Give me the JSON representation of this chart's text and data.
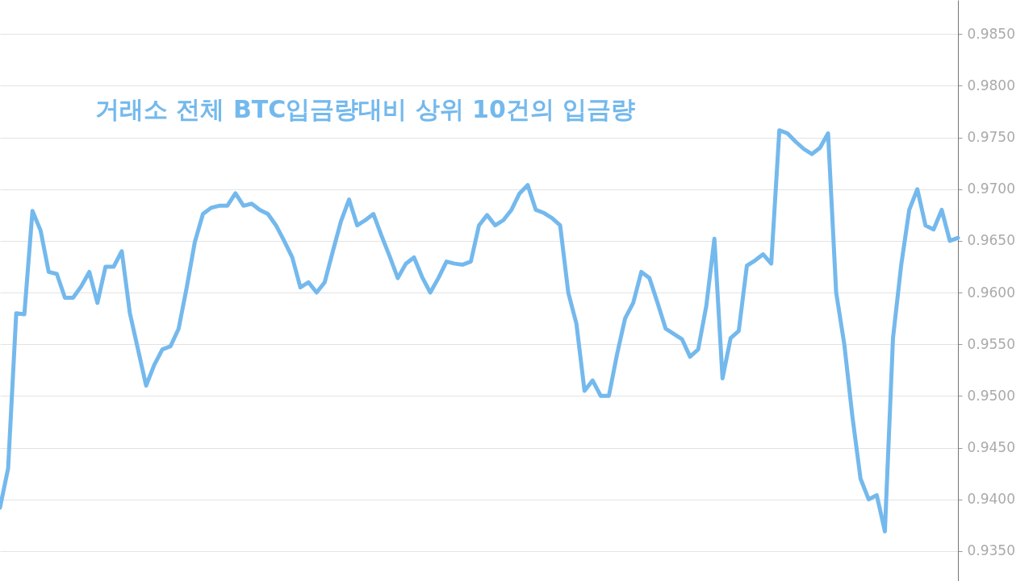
{
  "chart_data": {
    "type": "line",
    "title": "거래소 전체 BTC입금량대비 상위 10건의 입금량",
    "categories": [
      null,
      null,
      null,
      null,
      null,
      null,
      null,
      null,
      null,
      null,
      null,
      null,
      null,
      null,
      null,
      null,
      null,
      null,
      null,
      null,
      null,
      null,
      null,
      null,
      null,
      null,
      null,
      null,
      null,
      null,
      null,
      null,
      null,
      null,
      null,
      null,
      null,
      null,
      null,
      null,
      null,
      null,
      null,
      null,
      null,
      null,
      null,
      null,
      null,
      null,
      null,
      null,
      null,
      null,
      null,
      null,
      null,
      null,
      null,
      null,
      null,
      null,
      null,
      null,
      null,
      null,
      null,
      null,
      null,
      null,
      null,
      null,
      null,
      null,
      null,
      null,
      null,
      null,
      null,
      null,
      null,
      null,
      null,
      null,
      null,
      null,
      null,
      null,
      null,
      null,
      null,
      null,
      null,
      null,
      null,
      null,
      null,
      null,
      null,
      null,
      null,
      null,
      null,
      null,
      null,
      null,
      null,
      null,
      null,
      null,
      null,
      null,
      null,
      null,
      null,
      null,
      null,
      null,
      null
    ],
    "series": [
      {
        "color": "#74b9ed",
        "values": [
          0.9392,
          0.943,
          0.958,
          0.9579,
          0.9679,
          0.966,
          0.962,
          0.9618,
          0.9595,
          0.9595,
          0.9606,
          0.962,
          0.959,
          0.9625,
          0.9625,
          0.964,
          0.958,
          0.9545,
          0.951,
          0.953,
          0.9545,
          0.9548,
          0.9565,
          0.9605,
          0.9649,
          0.9676,
          0.9682,
          0.9684,
          0.9684,
          0.9696,
          0.9684,
          0.9686,
          0.968,
          0.9676,
          0.9665,
          0.965,
          0.9634,
          0.9605,
          0.961,
          0.96,
          0.961,
          0.964,
          0.9669,
          0.969,
          0.9665,
          0.967,
          0.9676,
          0.9655,
          0.9635,
          0.9614,
          0.9628,
          0.9634,
          0.9615,
          0.96,
          0.9614,
          0.963,
          0.9628,
          0.9627,
          0.963,
          0.9665,
          0.9675,
          0.9665,
          0.967,
          0.968,
          0.9696,
          0.9704,
          0.968,
          0.9677,
          0.9672,
          0.9665,
          0.96,
          0.957,
          0.9505,
          0.9515,
          0.95,
          0.95,
          0.954,
          0.9575,
          0.959,
          0.962,
          0.9614,
          0.959,
          0.9565,
          0.956,
          0.9555,
          0.9538,
          0.9545,
          0.9587,
          0.9652,
          0.9517,
          0.9556,
          0.9563,
          0.9626,
          0.9631,
          0.9637,
          0.9628,
          0.9757,
          0.9754,
          0.9746,
          0.9739,
          0.9734,
          0.974,
          0.9754,
          0.96,
          0.955,
          0.948,
          0.942,
          0.94,
          0.9404,
          0.9369,
          0.9556,
          0.9626,
          0.968,
          0.97,
          0.9665,
          0.9661,
          0.968,
          0.965,
          0.9653
        ]
      }
    ],
    "ylim": [
      0.9321,
      0.9883
    ],
    "yticks": [
      {
        "value": 0.935,
        "label": "0.9350"
      },
      {
        "value": 0.94,
        "label": "0.9400"
      },
      {
        "value": 0.945,
        "label": "0.9450"
      },
      {
        "value": 0.95,
        "label": "0.9500"
      },
      {
        "value": 0.955,
        "label": "0.9550"
      },
      {
        "value": 0.96,
        "label": "0.9600"
      },
      {
        "value": 0.965,
        "label": "0.9650"
      },
      {
        "value": 0.97,
        "label": "0.9700"
      },
      {
        "value": 0.975,
        "label": "0.9750"
      },
      {
        "value": 0.98,
        "label": "0.9800"
      },
      {
        "value": 0.985,
        "label": "0.9850"
      }
    ],
    "tick_labels": "y",
    "grid": "y",
    "marker": "none",
    "line_style": "solid"
  }
}
